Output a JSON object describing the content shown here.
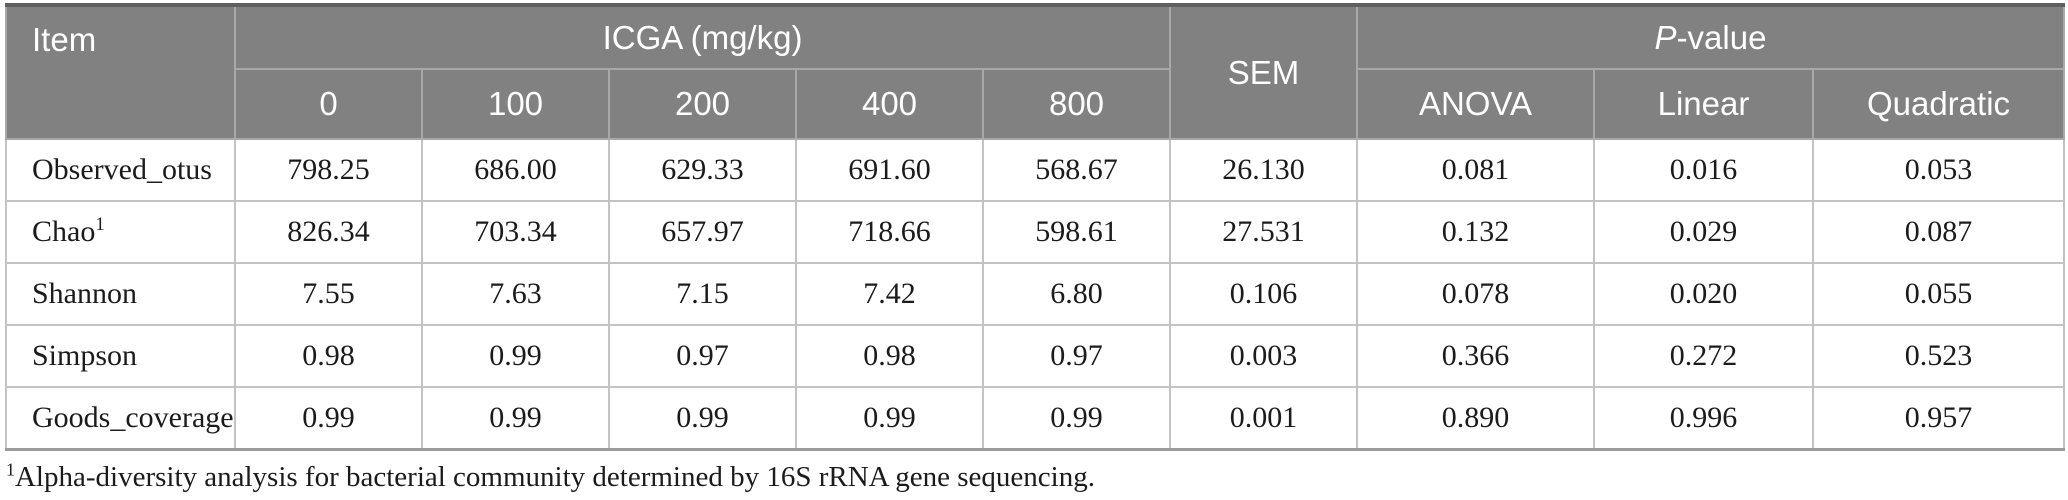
{
  "table": {
    "header": {
      "item_label": "Item",
      "icga_group_label": "ICGA (mg/kg)",
      "icga_doses": [
        "0",
        "100",
        "200",
        "400",
        "800"
      ],
      "sem_label": "SEM",
      "pvalue_label": {
        "italic": "P",
        "rest": "-value"
      },
      "pvalue_subheaders": [
        "ANOVA",
        "Linear",
        "Quadratic"
      ]
    },
    "rows": [
      {
        "item": "Observed_otus",
        "item_sup": "",
        "values": [
          "798.25",
          "686.00",
          "629.33",
          "691.60",
          "568.67"
        ],
        "sem": "26.130",
        "pvalues": [
          "0.081",
          "0.016",
          "0.053"
        ]
      },
      {
        "item": "Chao",
        "item_sup": "1",
        "values": [
          "826.34",
          "703.34",
          "657.97",
          "718.66",
          "598.61"
        ],
        "sem": "27.531",
        "pvalues": [
          "0.132",
          "0.029",
          "0.087"
        ]
      },
      {
        "item": "Shannon",
        "item_sup": "",
        "values": [
          "7.55",
          "7.63",
          "7.15",
          "7.42",
          "6.80"
        ],
        "sem": "0.106",
        "pvalues": [
          "0.078",
          "0.020",
          "0.055"
        ]
      },
      {
        "item": "Simpson",
        "item_sup": "",
        "values": [
          "0.98",
          "0.99",
          "0.97",
          "0.98",
          "0.97"
        ],
        "sem": "0.003",
        "pvalues": [
          "0.366",
          "0.272",
          "0.523"
        ]
      },
      {
        "item": "Goods_coverage",
        "item_sup": "",
        "values": [
          "0.99",
          "0.99",
          "0.99",
          "0.99",
          "0.99"
        ],
        "sem": "0.001",
        "pvalues": [
          "0.890",
          "0.996",
          "0.957"
        ]
      }
    ],
    "footnote": {
      "sup": "1",
      "text": "Alpha-diversity analysis for bacterial community determined by 16S rRNA gene sequencing."
    }
  },
  "colors": {
    "header_background": "#818181",
    "header_text": "#ffffff",
    "header_divider": "#a8a8a8",
    "body_border": "#c3c3c3",
    "table_top_border": "#5f5f5f",
    "table_bottom_border": "#9b9b9b",
    "body_text": "#1b1b1b",
    "page_background": "#ffffff"
  }
}
